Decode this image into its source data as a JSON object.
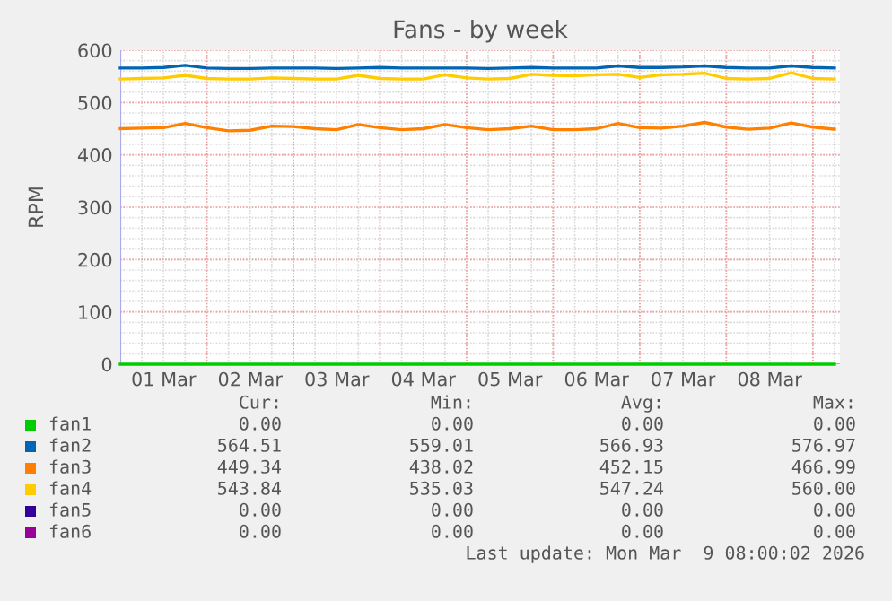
{
  "chart_data": {
    "type": "line",
    "title": "Fans - by week",
    "ylabel": "RPM",
    "x": [
      "2026-03-01T00:00",
      "2026-03-01T06:00",
      "2026-03-01T12:00",
      "2026-03-01T18:00",
      "2026-03-02T00:00",
      "2026-03-02T06:00",
      "2026-03-02T12:00",
      "2026-03-02T18:00",
      "2026-03-03T00:00",
      "2026-03-03T06:00",
      "2026-03-03T12:00",
      "2026-03-03T18:00",
      "2026-03-04T00:00",
      "2026-03-04T06:00",
      "2026-03-04T12:00",
      "2026-03-04T18:00",
      "2026-03-05T00:00",
      "2026-03-05T06:00",
      "2026-03-05T12:00",
      "2026-03-05T18:00",
      "2026-03-06T00:00",
      "2026-03-06T06:00",
      "2026-03-06T12:00",
      "2026-03-06T18:00",
      "2026-03-07T00:00",
      "2026-03-07T06:00",
      "2026-03-07T12:00",
      "2026-03-07T18:00",
      "2026-03-08T00:00",
      "2026-03-08T06:00",
      "2026-03-08T12:00",
      "2026-03-08T18:00",
      "2026-03-09T00:00",
      "2026-03-09T06:00"
    ],
    "series": [
      {
        "name": "fan1",
        "color": "#00cc00",
        "values": [
          0,
          0,
          0,
          0,
          0,
          0,
          0,
          0,
          0,
          0,
          0,
          0,
          0,
          0,
          0,
          0,
          0,
          0,
          0,
          0,
          0,
          0,
          0,
          0,
          0,
          0,
          0,
          0,
          0,
          0,
          0,
          0,
          0,
          0
        ]
      },
      {
        "name": "fan2",
        "color": "#0066b3",
        "values": [
          566,
          566,
          567,
          571,
          566,
          565,
          565,
          566,
          566,
          566,
          565,
          566,
          567,
          566,
          566,
          566,
          566,
          565,
          566,
          567,
          566,
          566,
          566,
          570,
          567,
          567,
          568,
          570,
          567,
          566,
          566,
          570,
          567,
          566
        ]
      },
      {
        "name": "fan3",
        "color": "#ff8000",
        "values": [
          450,
          451,
          452,
          460,
          452,
          446,
          447,
          455,
          454,
          450,
          448,
          458,
          452,
          448,
          450,
          458,
          452,
          448,
          450,
          455,
          448,
          448,
          450,
          460,
          452,
          451,
          455,
          462,
          453,
          449,
          451,
          461,
          453,
          449
        ]
      },
      {
        "name": "fan4",
        "color": "#ffcc00",
        "values": [
          545,
          546,
          547,
          552,
          546,
          545,
          545,
          547,
          546,
          545,
          545,
          552,
          546,
          545,
          545,
          553,
          547,
          545,
          546,
          554,
          552,
          551,
          553,
          554,
          548,
          553,
          554,
          556,
          546,
          545,
          546,
          557,
          546,
          545
        ]
      },
      {
        "name": "fan5",
        "color": "#330099",
        "values": [
          null,
          null,
          null,
          null,
          null,
          null,
          null,
          null,
          null,
          null,
          null,
          null,
          null,
          null,
          null,
          null,
          null,
          null,
          null,
          null,
          null,
          null,
          null,
          null,
          null,
          null,
          null,
          null,
          null,
          null,
          null,
          null,
          null,
          null
        ]
      },
      {
        "name": "fan6",
        "color": "#990099",
        "values": [
          null,
          null,
          null,
          null,
          null,
          null,
          null,
          null,
          null,
          null,
          null,
          null,
          null,
          null,
          null,
          null,
          null,
          null,
          null,
          null,
          null,
          null,
          null,
          null,
          null,
          null,
          null,
          null,
          null,
          null,
          null,
          null,
          null,
          null
        ]
      }
    ],
    "xlim": [
      "2026-03-01T00:00",
      "2026-03-09T07:30"
    ],
    "xticks": [
      {
        "value": "2026-03-01T12:00",
        "label": "01 Mar"
      },
      {
        "value": "2026-03-02T12:00",
        "label": "02 Mar"
      },
      {
        "value": "2026-03-03T12:00",
        "label": "03 Mar"
      },
      {
        "value": "2026-03-04T12:00",
        "label": "04 Mar"
      },
      {
        "value": "2026-03-05T12:00",
        "label": "05 Mar"
      },
      {
        "value": "2026-03-06T12:00",
        "label": "06 Mar"
      },
      {
        "value": "2026-03-07T12:00",
        "label": "07 Mar"
      },
      {
        "value": "2026-03-08T12:00",
        "label": "08 Mar"
      },
      {
        "value": "2026-03-02T00:00",
        "label": null
      },
      {
        "value": "2026-03-03T00:00",
        "label": null
      },
      {
        "value": "2026-03-04T00:00",
        "label": null
      },
      {
        "value": "2026-03-05T00:00",
        "label": null
      },
      {
        "value": "2026-03-06T00:00",
        "label": null
      },
      {
        "value": "2026-03-07T00:00",
        "label": null
      },
      {
        "value": "2026-03-08T00:00",
        "label": null
      },
      {
        "value": "2026-03-09T00:00",
        "label": null
      }
    ],
    "ylim": [
      0,
      600
    ],
    "yticks": [
      0,
      100,
      200,
      300,
      400,
      500,
      600
    ],
    "grid": true,
    "legend": "bottom",
    "marker": "none",
    "line_style": "solid",
    "annotations": [
      "Cur:",
      "Min:",
      "Avg:",
      "Max:",
      "0.00",
      "0.00",
      "0.00",
      "0.00",
      "564.51",
      "559.01",
      "566.93",
      "576.97",
      "449.34",
      "438.02",
      "452.15",
      "466.99",
      "543.84",
      "535.03",
      "547.24",
      "560.00",
      "0.00",
      "0.00",
      "0.00",
      "0.00",
      "0.00",
      "0.00",
      "0.00",
      "0.00",
      "Last update: Mon Mar  9 08:00:02 2026"
    ]
  }
}
